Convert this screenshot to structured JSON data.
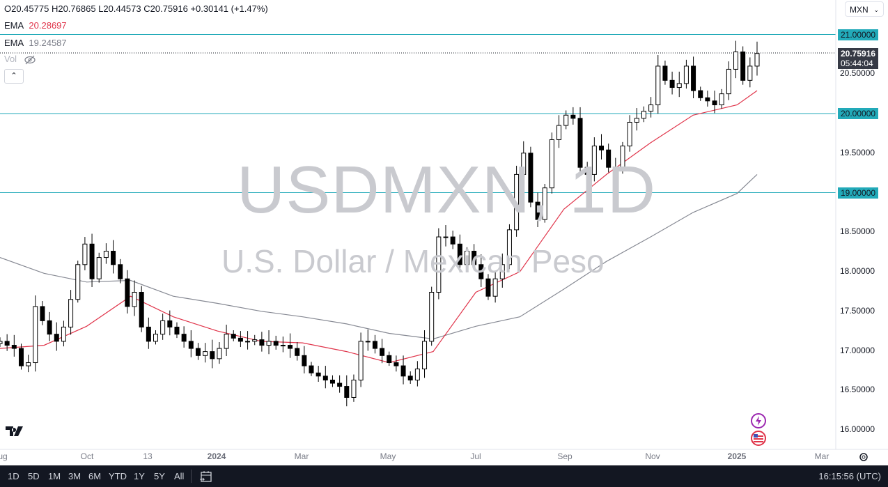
{
  "legend": {
    "ohlc": "O20.45775 H20.76865 L20.44573 C20.75916 +0.30141 (+1.47%)",
    "ema1_label": "EMA",
    "ema1_value": "20.28697",
    "ema2_label": "EMA",
    "ema2_value": "19.24587",
    "vol_label": "Vol",
    "collapse_icon": "chevron-up-icon"
  },
  "currency_selector": "MXN",
  "watermark": {
    "symbol": "USDMXN, 1D",
    "description": "U.S. Dollar / Mexican Peso"
  },
  "price_axis": {
    "labels": [
      "21.00000",
      "20.50000",
      "20.00000",
      "19.50000",
      "19.00000",
      "18.50000",
      "18.00000",
      "17.50000",
      "17.00000",
      "16.50000",
      "16.00000"
    ],
    "last_price": "20.75916",
    "countdown": "05:44:04"
  },
  "time_axis": [
    "Aug",
    "Oct",
    "13",
    "2024",
    "Mar",
    "May",
    "Jul",
    "Sep",
    "Nov",
    "2025",
    "Mar"
  ],
  "toolbar": {
    "ranges": [
      "1D",
      "5D",
      "1M",
      "3M",
      "6M",
      "YTD",
      "1Y",
      "5Y",
      "All"
    ],
    "clock": "16:15:56 (UTC)"
  },
  "colors": {
    "ema_fast": "#e0344a",
    "ema_slow": "#868993",
    "hline": "#22aab9",
    "up": "#ffffff",
    "down": "#000000"
  },
  "chart_data": {
    "type": "candlestick",
    "symbol": "USDMXN",
    "interval": "1D",
    "ylim": [
      16.0,
      21.2
    ],
    "horizontal_lines": [
      21.0,
      20.0,
      19.0
    ],
    "start_date": "2023-08-01",
    "end_date": "2025-01-15",
    "closes": [
      17.12,
      17.07,
      17.03,
      16.81,
      16.85,
      17.56,
      17.38,
      17.21,
      17.12,
      17.3,
      17.65,
      18.09,
      18.35,
      17.91,
      18.18,
      18.26,
      18.09,
      17.91,
      17.56,
      17.74,
      17.3,
      17.12,
      17.21,
      17.38,
      17.3,
      17.21,
      17.12,
      17.03,
      16.94,
      16.99,
      16.9,
      17.03,
      17.21,
      17.16,
      17.12,
      17.12,
      17.14,
      17.07,
      17.12,
      17.07,
      17.07,
      17.03,
      16.94,
      16.81,
      16.72,
      16.68,
      16.63,
      16.59,
      16.55,
      16.41,
      16.63,
      17.12,
      17.12,
      17.03,
      16.94,
      16.85,
      16.81,
      16.68,
      16.63,
      16.77,
      17.12,
      17.74,
      18.44,
      18.44,
      18.35,
      18.09,
      18.26,
      18.09,
      17.91,
      17.69,
      17.91,
      18.09,
      18.53,
      19.23,
      19.5,
      18.88,
      18.66,
      19.06,
      19.67,
      19.85,
      19.98,
      19.94,
      19.32,
      19.23,
      19.59,
      19.54,
      19.32,
      19.28,
      19.59,
      19.89,
      19.94,
      20.03,
      20.11,
      20.6,
      20.42,
      20.33,
      20.38,
      20.6,
      20.29,
      20.2,
      20.16,
      20.11,
      20.25,
      20.56,
      20.78,
      20.42,
      20.6,
      20.76
    ],
    "ema_fast": {
      "dates": [
        "2023-08-01",
        "2023-09-01",
        "2023-10-01",
        "2023-11-01",
        "2023-12-01",
        "2024-01-01",
        "2024-02-01",
        "2024-03-01",
        "2024-04-01",
        "2024-05-01",
        "2024-06-01",
        "2024-07-01",
        "2024-08-01",
        "2024-09-01",
        "2024-10-01",
        "2024-11-01",
        "2024-12-01",
        "2025-01-01",
        "2025-01-15"
      ],
      "values": [
        17.03,
        17.07,
        17.31,
        17.69,
        17.43,
        17.25,
        17.12,
        17.1,
        16.99,
        16.85,
        16.99,
        17.74,
        18.0,
        18.79,
        19.23,
        19.63,
        19.98,
        20.11,
        20.29
      ]
    },
    "ema_slow": {
      "dates": [
        "2023-08-01",
        "2023-09-01",
        "2023-10-01",
        "2023-11-01",
        "2023-12-01",
        "2024-01-01",
        "2024-02-01",
        "2024-03-01",
        "2024-04-01",
        "2024-05-01",
        "2024-06-01",
        "2024-07-01",
        "2024-08-01",
        "2024-09-01",
        "2024-10-01",
        "2024-11-01",
        "2024-12-01",
        "2025-01-01",
        "2025-01-15"
      ],
      "values": [
        18.18,
        17.98,
        17.87,
        17.89,
        17.69,
        17.6,
        17.5,
        17.43,
        17.34,
        17.22,
        17.15,
        17.31,
        17.43,
        17.78,
        18.13,
        18.44,
        18.75,
        18.99,
        19.23
      ]
    }
  }
}
